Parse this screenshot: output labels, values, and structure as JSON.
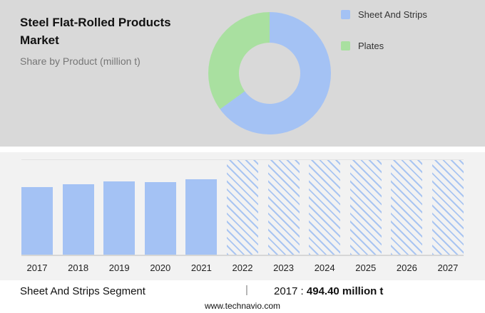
{
  "header": {
    "title": "Steel Flat-Rolled Products Market",
    "subtitle": "Share by Product (million t)"
  },
  "legend": [
    {
      "label": "Sheet And Strips",
      "color": "#a4c2f4"
    },
    {
      "label": "Plates",
      "color": "#a9e0a0"
    }
  ],
  "chart_data": [
    {
      "type": "pie",
      "variant": "donut",
      "title": "Share by Product (million t)",
      "legend_position": "right",
      "segments": [
        {
          "label": "Sheet And Strips",
          "value": 65,
          "color": "#a4c2f4"
        },
        {
          "label": "Plates",
          "value": 35,
          "color": "#a9e0a0"
        }
      ]
    },
    {
      "type": "bar",
      "series_name": "Sheet And Strips",
      "categories": [
        "2017",
        "2018",
        "2019",
        "2020",
        "2021",
        "2022",
        "2023",
        "2024",
        "2025",
        "2026",
        "2027"
      ],
      "values": [
        494.4,
        520,
        541,
        531,
        552,
        null,
        null,
        null,
        null,
        null,
        null
      ],
      "forecast_categories": [
        "2022",
        "2023",
        "2024",
        "2025",
        "2026",
        "2027"
      ],
      "ylim": [
        0,
        695
      ],
      "ylabel": "million t",
      "grid": false,
      "bar_color": "#a4c2f4",
      "forecast_style": "hatched"
    }
  ],
  "caption": {
    "segment_label": "Sheet And Strips Segment",
    "separator": "|",
    "year_label": "2017 :",
    "value": "494.40 million t"
  },
  "footer": {
    "url": "www.technavio.com"
  }
}
